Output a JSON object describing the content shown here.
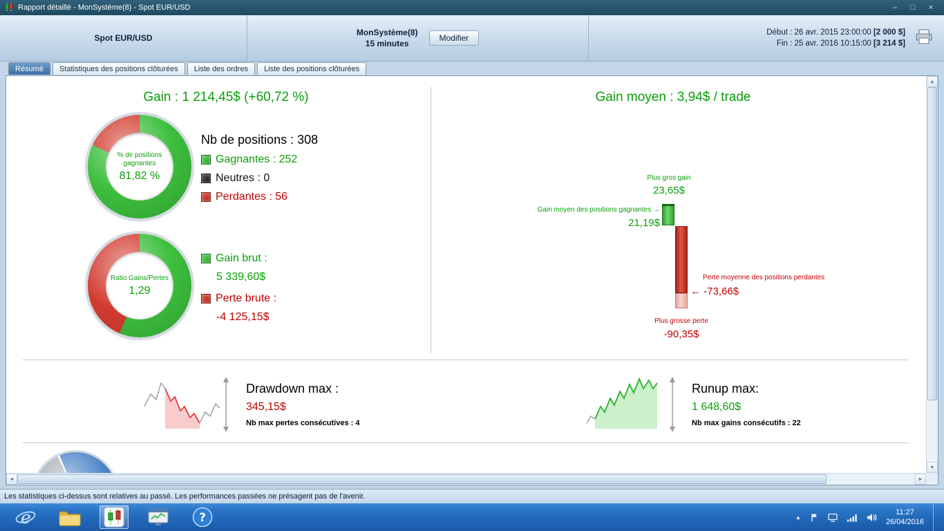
{
  "window": {
    "title": "Rapport détaillé - MonSystème(8) - Spot EUR/USD",
    "minimize": "–",
    "maximize": "□",
    "close": "×"
  },
  "header": {
    "instrument": "Spot EUR/USD",
    "system": "MonSystème(8)",
    "timeframe": "15 minutes",
    "modify": "Modifier",
    "debut_label": "Début :",
    "debut_date": "26 avr. 2015 23:00:00",
    "debut_amount": "[2 000 $]",
    "fin_label": "Fin :",
    "fin_date": "25 avr. 2016 10:15:00",
    "fin_amount": "[3 214 $]"
  },
  "tabs": {
    "resume": "Résumé",
    "stats": "Statistiques des positions clôturées",
    "orders": "Liste des ordres",
    "positions": "Liste des positions clôturées"
  },
  "summary": {
    "gain_label": "Gain :",
    "gain_value": "1 214,45$ (+60,72 %)",
    "donut1_line1": "% de positions",
    "donut1_line2": "gagnantes",
    "donut1_value": "81,82 %",
    "nb_label": "Nb de positions :",
    "nb_value": "308",
    "winners_label": "Gagnantes :",
    "winners_value": "252",
    "neutral_label": "Neutres :",
    "neutral_value": "0",
    "losers_label": "Perdantes :",
    "losers_value": "56",
    "donut2_line1": "Ratio Gains/Pertes",
    "donut2_value": "1,29",
    "gross_gain_label": "Gain brut :",
    "gross_gain_value": "5 339,60$",
    "gross_loss_label": "Perte brute :",
    "gross_loss_value": "-4 125,15$"
  },
  "average": {
    "title_label": "Gain moyen :",
    "title_value": "3,94$ / trade",
    "max_gain_label": "Plus gros gain",
    "max_gain_value": "23,65$",
    "avg_gain_label": "Gain moyen des positions gagnantes",
    "avg_gain_arrow": "→",
    "avg_gain_value": "21,19$",
    "avg_loss_label": "Perte moyenne des positions perdantes",
    "avg_loss_arrow": "←",
    "avg_loss_value": "-73,66$",
    "max_loss_label": "Plus grosse perte",
    "max_loss_value": "-90,35$"
  },
  "drawdown": {
    "label": "Drawdown max :",
    "value": "345,15$",
    "sub": "Nb max pertes consécutives : 4"
  },
  "runup": {
    "label": "Runup max:",
    "value": "1 648,60$",
    "sub": "Nb max gains consécutifs : 22"
  },
  "status_bar": "Les statistiques ci-dessus sont relatives au passé. Les performances passées ne présagent pas de l'avenir.",
  "taskbar": {
    "time": "11:27",
    "date": "26/04/2016"
  },
  "icons": {
    "scroll_up": "▲",
    "scroll_down": "▼",
    "scroll_left": "◄",
    "scroll_right": "►",
    "tray_chevron": "▲",
    "help": "?",
    "ie": "e"
  },
  "charts": {
    "win_rate_pct": 81.82,
    "ratio_green_pct": 56.3,
    "bar_max_gain": 23.65,
    "bar_avg_gain": 21.19,
    "bar_avg_loss": -73.66,
    "bar_max_loss": -90.35,
    "colors": {
      "ring_green": "#3cbe3c",
      "ring_red": "#d23b2f"
    }
  }
}
